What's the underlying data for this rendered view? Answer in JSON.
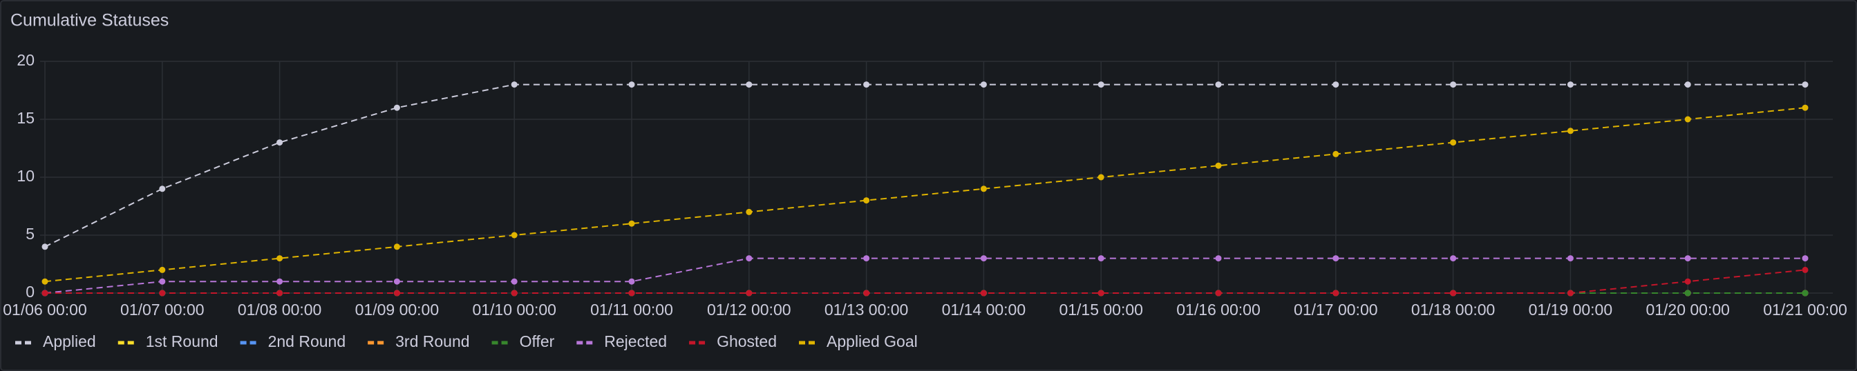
{
  "chart_data": {
    "type": "line",
    "title": "Cumulative Statuses",
    "categories": [
      "01/06 00:00",
      "01/07 00:00",
      "01/08 00:00",
      "01/09 00:00",
      "01/10 00:00",
      "01/11 00:00",
      "01/12 00:00",
      "01/13 00:00",
      "01/14 00:00",
      "01/15 00:00",
      "01/16 00:00",
      "01/17 00:00",
      "01/18 00:00",
      "01/19 00:00",
      "01/20 00:00",
      "01/21 00:00"
    ],
    "series": [
      {
        "name": "Applied",
        "color": "#ccccdc",
        "values": [
          4,
          9,
          13,
          16,
          18,
          18,
          18,
          18,
          18,
          18,
          18,
          18,
          18,
          18,
          18,
          18
        ]
      },
      {
        "name": "1st Round",
        "color": "#fade2a",
        "values": [
          0,
          0,
          0,
          0,
          0,
          0,
          0,
          0,
          0,
          0,
          0,
          0,
          0,
          0,
          0,
          0
        ]
      },
      {
        "name": "2nd Round",
        "color": "#5794f2",
        "values": [
          0,
          0,
          0,
          0,
          0,
          0,
          0,
          0,
          0,
          0,
          0,
          0,
          0,
          0,
          0,
          0
        ]
      },
      {
        "name": "3rd Round",
        "color": "#ff9830",
        "values": [
          0,
          0,
          0,
          0,
          0,
          0,
          0,
          0,
          0,
          0,
          0,
          0,
          0,
          0,
          0,
          0
        ]
      },
      {
        "name": "Offer",
        "color": "#37872d",
        "values": [
          0,
          0,
          0,
          0,
          0,
          0,
          0,
          0,
          0,
          0,
          0,
          0,
          0,
          0,
          0,
          0
        ]
      },
      {
        "name": "Rejected",
        "color": "#b877d9",
        "values": [
          0,
          1,
          1,
          1,
          1,
          1,
          3,
          3,
          3,
          3,
          3,
          3,
          3,
          3,
          3,
          3
        ]
      },
      {
        "name": "Ghosted",
        "color": "#c4162a",
        "values": [
          0,
          0,
          0,
          0,
          0,
          0,
          0,
          0,
          0,
          0,
          0,
          0,
          0,
          0,
          1,
          2
        ]
      },
      {
        "name": "Applied Goal",
        "color": "#e0b400",
        "values": [
          1,
          2,
          3,
          4,
          5,
          6,
          7,
          8,
          9,
          10,
          11,
          12,
          13,
          14,
          15,
          16
        ]
      }
    ],
    "ylim": [
      0,
      20
    ],
    "yticks": [
      0,
      5,
      10,
      15,
      20
    ],
    "grid": true,
    "legend": "bottom-left"
  }
}
